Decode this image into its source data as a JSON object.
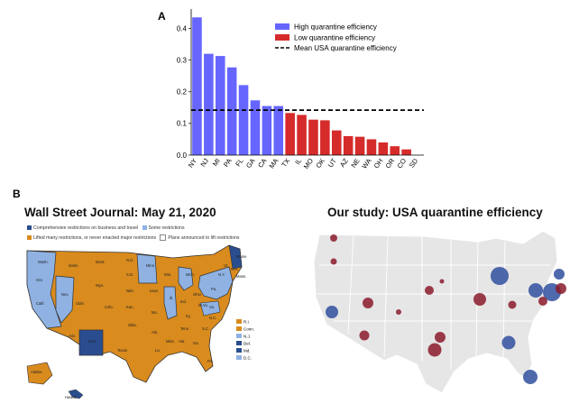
{
  "panel_a_label": "A",
  "panel_b_label": "B",
  "chart_data": {
    "type": "bar",
    "categories": [
      "NY",
      "NJ",
      "MI",
      "PA",
      "FL",
      "GA",
      "CA",
      "MA",
      "TX",
      "IL",
      "MO",
      "OK",
      "UT",
      "AZ",
      "NE",
      "WA",
      "OH",
      "OR",
      "CO",
      "SD"
    ],
    "values": [
      0.435,
      0.32,
      0.313,
      0.277,
      0.221,
      0.173,
      0.155,
      0.155,
      0.133,
      0.127,
      0.112,
      0.11,
      0.078,
      0.06,
      0.058,
      0.05,
      0.04,
      0.028,
      0.018,
      0.0
    ],
    "high_count": 8,
    "mean_line": 0.142,
    "ylim": [
      0,
      0.45
    ],
    "yticks": [
      "0.0",
      "0.1",
      "0.2",
      "0.3",
      "0.4"
    ],
    "ytick_values": [
      0,
      0.1,
      0.2,
      0.3,
      0.4
    ],
    "colors": {
      "high": "#6666ff",
      "low": "#d62b2b",
      "mean": "#000000"
    },
    "legend": {
      "high": "High quarantine efficiency",
      "low": "Low quarantine efficiency",
      "mean": "Mean USA quarantine efficiency",
      "placement": "top-right"
    },
    "xlabel": "",
    "ylabel": ""
  },
  "maps": {
    "left_title": "Wall Street Journal: May 21, 2020",
    "right_title": "Our study: USA quarantine efficiency",
    "wsj_legend": [
      {
        "label": "Comprehensive restrictions on business and travel",
        "color": "#2a4d8f"
      },
      {
        "label": "Some restrictions",
        "color": "#8fb2e3"
      },
      {
        "label": "Lifted many restrictions, or never enacted major restrictions",
        "color": "#d98b1e"
      },
      {
        "label": "Plans announced to lift restrictions",
        "color": "#ffffff"
      }
    ],
    "wsj_key": [
      "R.I.",
      "Conn.",
      "N.J.",
      "Del.",
      "Md.",
      "D.C."
    ],
    "wsj_state_labels": [
      "Wash.",
      "Ore.",
      "Calif.",
      "Nev.",
      "Idaho",
      "Mont.",
      "Wyo.",
      "Utah",
      "Ariz.",
      "N.M.",
      "Colo.",
      "N.D.",
      "S.D.",
      "Neb.",
      "Kan.",
      "Okla.",
      "Texas",
      "Minn.",
      "Iowa",
      "Mo.",
      "Ark.",
      "La.",
      "Wis.",
      "Ill.",
      "Mich.",
      "Ind.",
      "Ohio",
      "Ky.",
      "Tenn.",
      "Miss.",
      "Ala.",
      "Ga.",
      "Fla.",
      "S.C.",
      "N.C.",
      "Va.",
      "W.Va.",
      "Pa.",
      "N.Y.",
      "Vt.",
      "N.H.",
      "Mass.",
      "Maine",
      "Alaska",
      "Hawaii"
    ]
  }
}
